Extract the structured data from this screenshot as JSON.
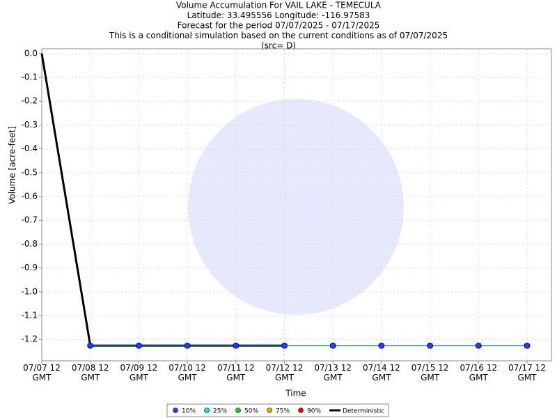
{
  "chart_data": {
    "type": "line",
    "title": [
      "Volume Accumulation For VAIL LAKE - TEMECULA",
      "Latitude: 33.495556 Longitude: -116.97583",
      "Forecast for the period 07/07/2025 - 07/17/2025",
      "This is a conditional simulation based on the current conditions as of 07/07/2025",
      "(src= D)"
    ],
    "x_label": "Time",
    "y_label": "Volume [acre-feet]",
    "x": [
      "07/07 12 GMT",
      "07/08 12 GMT",
      "07/09 12 GMT",
      "07/10 12 GMT",
      "07/11 12 GMT",
      "07/12 12 GMT",
      "07/13 12 GMT",
      "07/14 12 GMT",
      "07/15 12 GMT",
      "07/16 12 GMT",
      "07/17 12 GMT"
    ],
    "ylim": [
      -1.29,
      0.02
    ],
    "yticks": [
      {
        "value": 0,
        "label": "0.0"
      },
      -0.1,
      -0.2,
      -0.3,
      -0.4,
      -0.5,
      -0.6,
      -0.7,
      -0.8,
      -0.9,
      {
        "value": -1,
        "label": "-1.0"
      },
      -1.1,
      -1.2
    ],
    "grid": true,
    "legend": "bottom",
    "series": [
      {
        "name": "10%",
        "color": "#1f3fff",
        "values": [
          null,
          -1.226,
          -1.226,
          -1.226,
          -1.226,
          -1.226,
          -1.226,
          -1.226,
          -1.226,
          -1.226,
          -1.226
        ]
      },
      {
        "name": "25%",
        "color": "#00e5e5",
        "values": [
          null,
          -1.226,
          -1.226,
          -1.226,
          -1.226,
          -1.226,
          -1.226,
          -1.226,
          -1.226,
          -1.226,
          -1.226
        ]
      },
      {
        "name": "50%",
        "color": "#22cc22",
        "values": [
          null,
          -1.226,
          -1.226,
          -1.226,
          -1.226,
          -1.226,
          -1.226,
          -1.226,
          -1.226,
          -1.226,
          -1.226
        ]
      },
      {
        "name": "75%",
        "color": "#e5a800",
        "values": [
          null,
          -1.226,
          -1.226,
          -1.226,
          -1.226,
          -1.226,
          -1.226,
          -1.226,
          -1.226,
          -1.226,
          -1.226
        ]
      },
      {
        "name": "90%",
        "color": "#e01010",
        "values": [
          null,
          -1.226,
          -1.226,
          -1.226,
          -1.226,
          -1.226,
          -1.226,
          -1.226,
          -1.226,
          -1.226,
          -1.226
        ]
      },
      {
        "name": "Deterministic",
        "color": "#000000",
        "values": [
          0,
          -1.226,
          -1.226,
          -1.226,
          -1.226,
          -1.226,
          null,
          null,
          null,
          null,
          null
        ]
      }
    ]
  }
}
